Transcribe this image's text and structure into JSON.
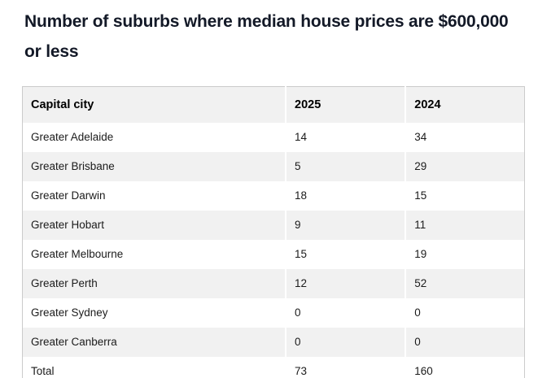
{
  "page": {
    "title": "Number of suburbs where median house prices are $600,000 or less"
  },
  "table": {
    "headers": [
      "Capital city",
      "2025",
      "2024"
    ],
    "rows": [
      [
        "Greater Adelaide",
        "14",
        "34"
      ],
      [
        "Greater Brisbane",
        "5",
        "29"
      ],
      [
        "Greater Darwin",
        "18",
        "15"
      ],
      [
        "Greater Hobart",
        "9",
        "11"
      ],
      [
        "Greater Melbourne",
        "15",
        "19"
      ],
      [
        "Greater Perth",
        "12",
        "52"
      ],
      [
        "Greater Sydney",
        "0",
        "0"
      ],
      [
        "Greater Canberra",
        "0",
        "0"
      ],
      [
        "Total",
        "73",
        "160"
      ]
    ]
  },
  "chart_data": {
    "type": "table",
    "title": "Number of suburbs where median house prices are $600,000 or less",
    "columns": [
      "Capital city",
      "2025",
      "2024"
    ],
    "categories": [
      "Greater Adelaide",
      "Greater Brisbane",
      "Greater Darwin",
      "Greater Hobart",
      "Greater Melbourne",
      "Greater Perth",
      "Greater Sydney",
      "Greater Canberra",
      "Total"
    ],
    "series": [
      {
        "name": "2025",
        "values": [
          14,
          5,
          18,
          9,
          15,
          12,
          0,
          0,
          73
        ]
      },
      {
        "name": "2024",
        "values": [
          34,
          29,
          15,
          11,
          19,
          52,
          0,
          0,
          160
        ]
      }
    ],
    "layout_hints": {
      "zebra_striping": true,
      "header_background": "#f1f1f1",
      "stripe_background": "#f1f1f1",
      "border_color": "#cbcbcb"
    }
  },
  "colors": {
    "title_text": "#131927",
    "body_text": "#1b1b1b",
    "header_background": "#f1f1f1",
    "stripe_background": "#f1f1f1",
    "table_border": "#cbcbcb",
    "column_separator": "#ffffff",
    "page_background": "#ffffff"
  }
}
